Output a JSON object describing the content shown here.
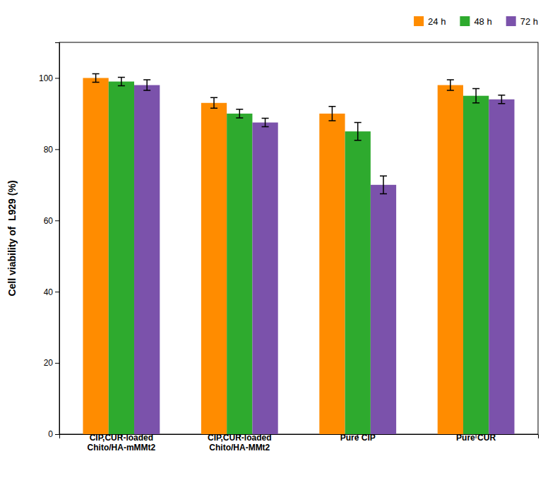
{
  "chart_data": {
    "type": "bar",
    "categories": [
      "CIP,CUR-loaded\nChito/HA-mMMt2",
      "CIP,CUR-loaded\nChito/HA-MMt2",
      "Pure CIP",
      "Pure CUR"
    ],
    "series": [
      {
        "name": "24 h",
        "color": "#FF8C00",
        "values": [
          100,
          93,
          90,
          98
        ],
        "errors": [
          1.2,
          1.5,
          2.0,
          1.5
        ]
      },
      {
        "name": "48 h",
        "color": "#2EAA2E",
        "values": [
          99,
          90,
          85,
          95
        ],
        "errors": [
          1.2,
          1.2,
          2.5,
          2.0
        ]
      },
      {
        "name": "72 h",
        "color": "#7B52AB",
        "values": [
          98,
          87.5,
          70,
          94
        ],
        "errors": [
          1.5,
          1.2,
          2.5,
          1.2
        ]
      }
    ],
    "ylabel": "Cell viability of  L929 (%)",
    "ylim": [
      0,
      110
    ],
    "yticks": [
      0,
      20,
      40,
      60,
      80,
      100
    ],
    "grid": false,
    "legend": "upper right"
  }
}
